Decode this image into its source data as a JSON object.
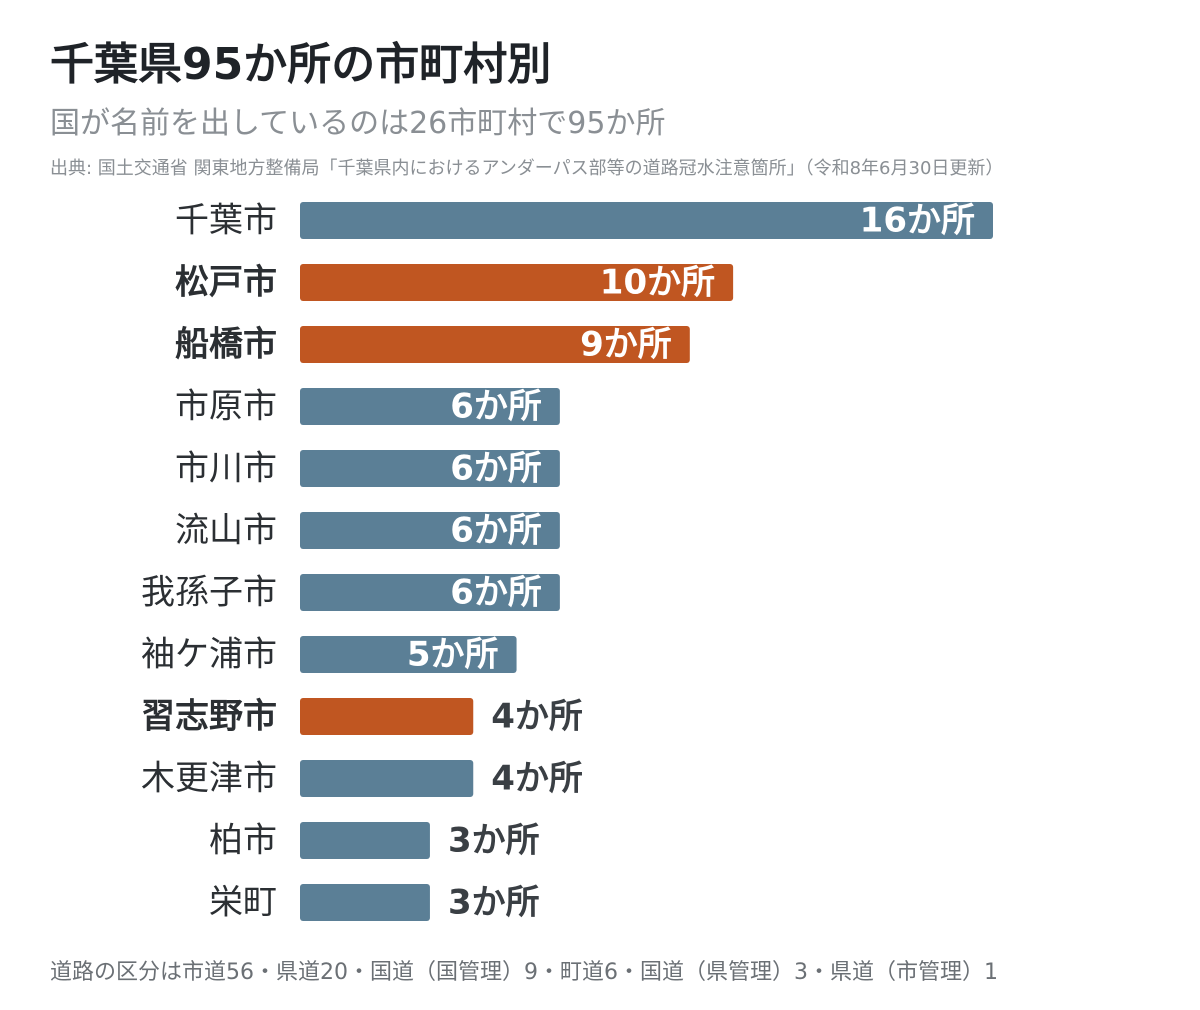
{
  "header": {
    "title": "千葉県95か所の市町村別",
    "subtitle": "国が名前を出しているのは26市町村で95か所",
    "source": "出典: 国土交通省 関東地方整備局「千葉県内におけるアンダーパス部等の道路冠水注意箇所」（令和8年6月30日更新）"
  },
  "footnote": "道路の区分は市道56・県道20・国道（国管理）9・町道6・国道（県管理）3・県道（市管理）1",
  "colors": {
    "default_bar": "#5b7f96",
    "highlight_bar": "#c05621",
    "label_inside": "#ffffff",
    "label_outside": "#3a3f44"
  },
  "chart_data": {
    "type": "bar",
    "orientation": "horizontal",
    "unit_suffix": "か所",
    "categories": [
      "千葉市",
      "松戸市",
      "船橋市",
      "市原市",
      "市川市",
      "流山市",
      "我孫子市",
      "袖ケ浦市",
      "習志野市",
      "木更津市",
      "柏市",
      "栄町"
    ],
    "values": [
      16,
      10,
      9,
      6,
      6,
      6,
      6,
      5,
      4,
      4,
      3,
      3
    ],
    "value_labels": [
      "16か所",
      "10か所",
      "9か所",
      "6か所",
      "6か所",
      "6か所",
      "6か所",
      "5か所",
      "4か所",
      "4か所",
      "3か所",
      "3か所"
    ],
    "highlighted": [
      "松戸市",
      "船橋市",
      "習志野市"
    ],
    "xlim": [
      0,
      16
    ],
    "grid": false,
    "legend": "none"
  }
}
